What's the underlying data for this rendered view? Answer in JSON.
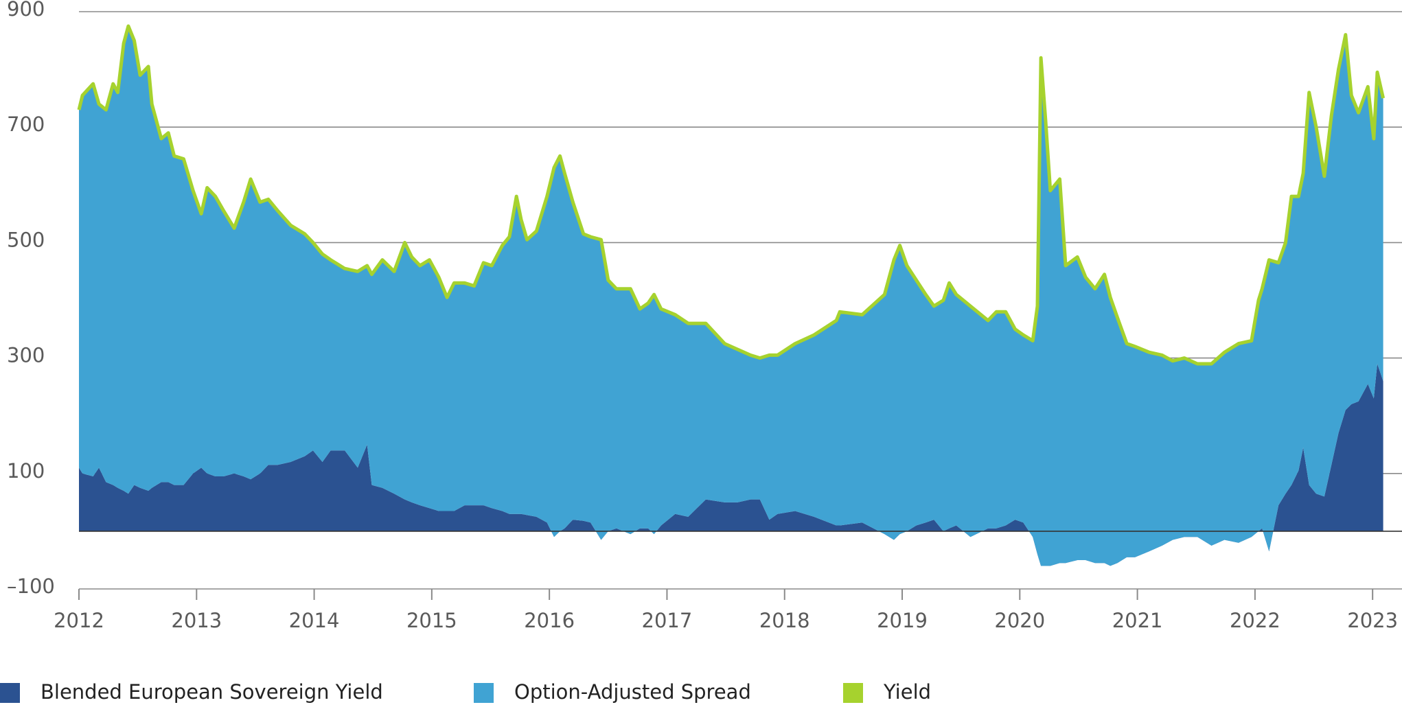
{
  "chart_data": {
    "type": "area",
    "stacked": true,
    "x": [
      2012.0,
      2012.03,
      2012.12,
      2012.17,
      2012.23,
      2012.29,
      2012.33,
      2012.38,
      2012.42,
      2012.47,
      2012.52,
      2012.59,
      2012.62,
      2012.7,
      2012.76,
      2012.81,
      2012.89,
      2012.97,
      2013.04,
      2013.09,
      2013.16,
      2013.23,
      2013.32,
      2013.4,
      2013.46,
      2013.54,
      2013.61,
      2013.69,
      2013.8,
      2013.92,
      2013.99,
      2014.07,
      2014.14,
      2014.26,
      2014.37,
      2014.45,
      2014.49,
      2014.58,
      2014.68,
      2014.77,
      2014.83,
      2014.9,
      2014.98,
      2015.06,
      2015.13,
      2015.19,
      2015.28,
      2015.36,
      2015.44,
      2015.51,
      2015.6,
      2015.66,
      2015.72,
      2015.76,
      2015.81,
      2015.89,
      2015.98,
      2016.04,
      2016.09,
      2016.13,
      2016.2,
      2016.29,
      2016.35,
      2016.44,
      2016.5,
      2016.57,
      2016.69,
      2016.77,
      2016.84,
      2016.89,
      2016.95,
      2017.07,
      2017.18,
      2017.33,
      2017.49,
      2017.6,
      2017.71,
      2017.79,
      2017.87,
      2017.94,
      2018.09,
      2018.25,
      2018.44,
      2018.47,
      2018.66,
      2018.85,
      2018.93,
      2018.98,
      2019.04,
      2019.12,
      2019.2,
      2019.27,
      2019.35,
      2019.4,
      2019.46,
      2019.58,
      2019.73,
      2019.8,
      2019.88,
      2019.96,
      2020.03,
      2020.11,
      2020.15,
      2020.18,
      2020.22,
      2020.26,
      2020.34,
      2020.39,
      2020.49,
      2020.56,
      2020.64,
      2020.72,
      2020.77,
      2020.83,
      2020.91,
      2020.98,
      2021.1,
      2021.21,
      2021.3,
      2021.4,
      2021.51,
      2021.63,
      2021.74,
      2021.86,
      2021.97,
      2022.03,
      2022.06,
      2022.12,
      2022.2,
      2022.26,
      2022.31,
      2022.37,
      2022.41,
      2022.46,
      2022.52,
      2022.59,
      2022.65,
      2022.71,
      2022.77,
      2022.82,
      2022.88,
      2022.96,
      2023.01,
      2023.04,
      2023.09
    ],
    "series": [
      {
        "name": "Blended European Sovereign Yield",
        "color": "#2b5291",
        "type": "area",
        "values": [
          110,
          100,
          95,
          110,
          85,
          80,
          75,
          70,
          65,
          80,
          75,
          70,
          75,
          85,
          85,
          80,
          80,
          100,
          110,
          100,
          95,
          95,
          100,
          95,
          90,
          100,
          115,
          115,
          120,
          130,
          140,
          120,
          140,
          140,
          110,
          150,
          80,
          75,
          65,
          55,
          50,
          45,
          40,
          35,
          35,
          35,
          45,
          45,
          45,
          40,
          35,
          30,
          30,
          30,
          28,
          25,
          15,
          -10,
          0,
          5,
          20,
          18,
          15,
          -15,
          0,
          5,
          -5,
          5,
          5,
          -5,
          10,
          30,
          25,
          55,
          50,
          50,
          55,
          55,
          20,
          30,
          35,
          25,
          10,
          10,
          15,
          -5,
          -15,
          -5,
          0,
          10,
          15,
          20,
          0,
          5,
          10,
          -10,
          5,
          5,
          10,
          20,
          15,
          -10,
          -40,
          -60,
          -60,
          -60,
          -55,
          -55,
          -50,
          -50,
          -55,
          -55,
          -60,
          -55,
          -45,
          -45,
          -35,
          -25,
          -15,
          -10,
          -10,
          -25,
          -15,
          -20,
          -10,
          0,
          5,
          -35,
          45,
          65,
          80,
          105,
          145,
          80,
          65,
          60,
          115,
          170,
          210,
          220,
          225,
          255,
          230,
          290,
          260
        ]
      },
      {
        "name": "Option-Adjusted Spread",
        "color": "#40a3d3",
        "type": "area",
        "values": [
          620,
          655,
          680,
          630,
          645,
          695,
          685,
          775,
          810,
          770,
          715,
          735,
          665,
          595,
          605,
          570,
          565,
          490,
          440,
          495,
          485,
          460,
          425,
          475,
          520,
          470,
          460,
          440,
          410,
          385,
          360,
          360,
          330,
          315,
          340,
          310,
          365,
          395,
          385,
          445,
          425,
          415,
          430,
          405,
          370,
          395,
          385,
          380,
          420,
          420,
          460,
          480,
          550,
          510,
          477,
          495,
          565,
          640,
          650,
          615,
          550,
          497,
          495,
          520,
          435,
          415,
          425,
          380,
          390,
          415,
          375,
          345,
          335,
          305,
          275,
          265,
          250,
          245,
          285,
          275,
          290,
          315,
          355,
          370,
          360,
          415,
          485,
          500,
          460,
          425,
          395,
          370,
          400,
          425,
          400,
          400,
          360,
          375,
          370,
          330,
          325,
          340,
          430,
          880,
          770,
          650,
          665,
          515,
          525,
          490,
          475,
          500,
          465,
          425,
          370,
          365,
          345,
          330,
          310,
          310,
          300,
          315,
          325,
          345,
          340,
          400,
          415,
          505,
          420,
          435,
          500,
          475,
          475,
          680,
          635,
          555,
          605,
          630,
          650,
          535,
          500,
          515,
          450,
          505,
          490
        ]
      },
      {
        "name": "Yield",
        "color": "#a6d22e",
        "type": "line",
        "values": [
          730,
          755,
          775,
          740,
          730,
          775,
          760,
          845,
          875,
          850,
          790,
          805,
          740,
          680,
          690,
          650,
          645,
          590,
          550,
          595,
          580,
          555,
          525,
          570,
          610,
          570,
          575,
          555,
          530,
          515,
          500,
          480,
          470,
          455,
          450,
          460,
          445,
          470,
          450,
          500,
          475,
          460,
          470,
          440,
          405,
          430,
          430,
          425,
          465,
          460,
          495,
          510,
          580,
          540,
          505,
          520,
          580,
          630,
          650,
          620,
          570,
          515,
          510,
          505,
          435,
          420,
          420,
          385,
          395,
          410,
          385,
          375,
          360,
          360,
          325,
          315,
          305,
          300,
          305,
          305,
          325,
          340,
          365,
          380,
          375,
          410,
          470,
          495,
          460,
          435,
          410,
          390,
          400,
          430,
          410,
          390,
          365,
          380,
          380,
          350,
          340,
          330,
          390,
          820,
          710,
          590,
          610,
          460,
          475,
          440,
          420,
          445,
          405,
          370,
          325,
          320,
          310,
          305,
          295,
          300,
          290,
          290,
          310,
          325,
          330,
          400,
          420,
          470,
          465,
          500,
          580,
          580,
          620,
          760,
          700,
          615,
          720,
          800,
          860,
          755,
          725,
          770,
          680,
          795,
          750
        ]
      }
    ],
    "xlim": [
      2012,
      2023.25
    ],
    "xticks": [
      2012,
      2013,
      2014,
      2015,
      2016,
      2017,
      2018,
      2019,
      2020,
      2021,
      2022,
      2023
    ],
    "ylim": [
      -100,
      900
    ],
    "yticks": [
      900,
      700,
      500,
      300,
      100,
      {
        "value": -100,
        "label": "–100"
      }
    ],
    "grid": true
  }
}
